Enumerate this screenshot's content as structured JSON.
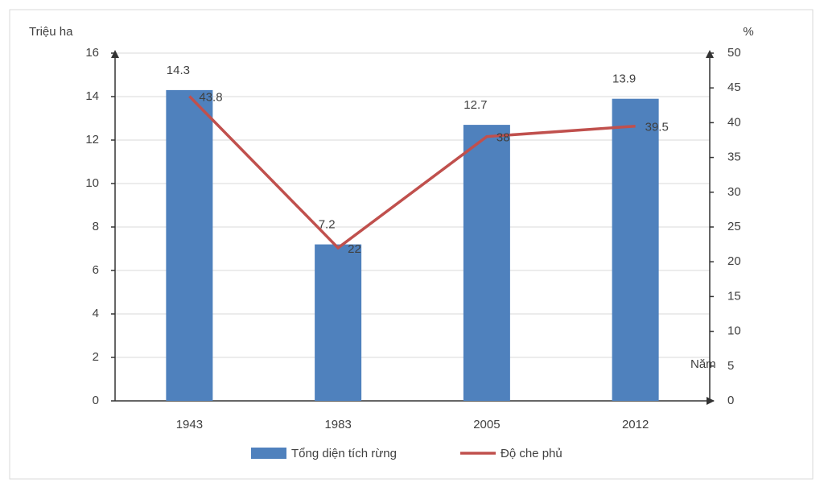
{
  "chart_data": {
    "type": "bar",
    "y_label": "Triệu ha",
    "y2_label": "%",
    "x_label": "Năm",
    "categories": [
      "1943",
      "1983",
      "2005",
      "2012"
    ],
    "series": [
      {
        "name": "Tổng diện tích rừng",
        "type": "bar",
        "color": "#4f81bd",
        "values": [
          14.3,
          7.2,
          12.7,
          13.9
        ]
      },
      {
        "name": "Độ che phủ",
        "type": "line",
        "axis": "y2",
        "color": "#c0504d",
        "values": [
          43.8,
          22,
          38,
          39.5
        ]
      }
    ],
    "ylim": [
      0,
      16
    ],
    "yticks": [
      0,
      2,
      4,
      6,
      8,
      10,
      12,
      14,
      16
    ],
    "y2lim": [
      0,
      50
    ],
    "y2ticks": [
      0,
      5,
      10,
      15,
      20,
      25,
      30,
      35,
      40,
      45,
      50
    ],
    "grid": true
  }
}
